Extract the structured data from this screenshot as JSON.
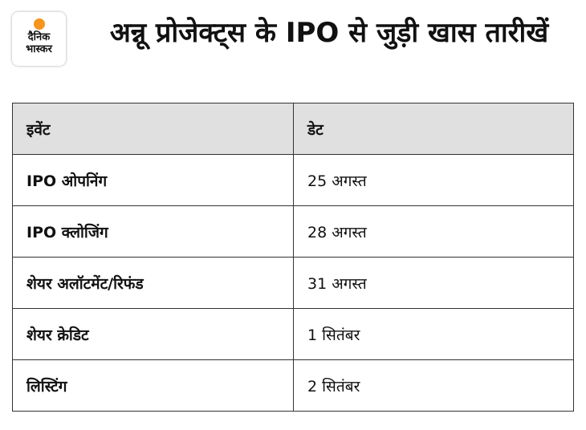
{
  "logo": {
    "line1": "दैनिक",
    "line2": "भास्कर"
  },
  "title": "अन्नू प्रोजेक्ट्स के IPO से जुड़ी खास तारीखें",
  "table": {
    "header": [
      "इवेंट",
      "डेट"
    ],
    "rows": [
      [
        "IPO ओपनिंग",
        "25 अगस्त"
      ],
      [
        "IPO क्लोजिंग",
        "28 अगस्त"
      ],
      [
        "शेयर अलॉटमेंट/रिफंड",
        "31 अगस्त"
      ],
      [
        "शेयर क्रेडिट",
        "1 सितंबर"
      ],
      [
        "लिस्टिंग",
        "2 सितंबर"
      ]
    ]
  }
}
